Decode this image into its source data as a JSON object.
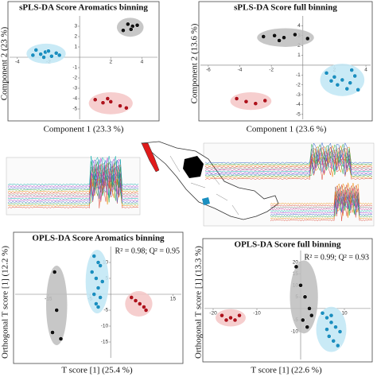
{
  "chart_data": [
    {
      "type": "scatter",
      "title": "sPLS-DA Score Aromatics binning",
      "x_label": "Component 1 (23.3 %)",
      "y_label": "Component 2 (23 %)",
      "xlim": [
        -4.5,
        5
      ],
      "ylim": [
        -6,
        4
      ],
      "xticks": [
        -4,
        -2,
        2,
        4
      ],
      "yticks": [
        -5,
        -4,
        -3,
        -2,
        -1,
        1,
        2,
        3
      ],
      "series": [
        {
          "color": "#111111",
          "ellipse_color": "#bdbdbd",
          "x": [
            2.8,
            3.1,
            3.4,
            3.7,
            3.3
          ],
          "y": [
            2.6,
            3.2,
            3.0,
            3.1,
            2.7
          ]
        },
        {
          "color": "#1a8fc0",
          "ellipse_color": "#bfe6f5",
          "x": [
            -3,
            -2.5,
            -2.2,
            -1.8,
            -1.5,
            -2,
            -2.8,
            -1.3,
            -2.3
          ],
          "y": [
            0.2,
            0.3,
            0.5,
            0.1,
            0.4,
            0.6,
            0.7,
            0.2,
            0
          ]
        },
        {
          "color": "#b0121c",
          "ellipse_color": "#f5c6c6",
          "x": [
            1.0,
            1.5,
            2.0,
            2.6,
            3.0,
            1.8
          ],
          "y": [
            -4.1,
            -4.4,
            -4.3,
            -4.7,
            -4.9,
            -4.0
          ]
        }
      ]
    },
    {
      "type": "scatter",
      "title": "sPLS-DA Score full binning",
      "x_label": "Component 1 (23.6 %)",
      "y_label": "Component 2 (13.6 %)",
      "xlim": [
        -6.5,
        4.3
      ],
      "ylim": [
        -5.5,
        5
      ],
      "xticks": [
        -6,
        -4,
        -2,
        2,
        4
      ],
      "yticks": [
        -5,
        -4,
        -3,
        -2,
        -1,
        1,
        2,
        3,
        4
      ],
      "series": [
        {
          "color": "#111111",
          "ellipse_color": "#bdbdbd",
          "x": [
            -2.5,
            -1.8,
            -1.2,
            -0.5,
            0.3,
            -1.5
          ],
          "y": [
            2.9,
            3.0,
            2.8,
            3.1,
            2.7,
            2.5
          ]
        },
        {
          "color": "#1a8fc0",
          "ellipse_color": "#bfe6f5",
          "x": [
            1.5,
            2,
            2.5,
            3,
            2.8,
            3.3,
            2.2,
            3.5,
            1.8,
            3.1
          ],
          "y": [
            -0.8,
            -1.2,
            -1.5,
            -1.8,
            -2.4,
            -1.1,
            -2.0,
            -2.5,
            -1.6,
            -0.5
          ]
        },
        {
          "color": "#b0121c",
          "ellipse_color": "#f5c6c6",
          "x": [
            -4.2,
            -3.6,
            -3.0,
            -2.4
          ],
          "y": [
            -3.4,
            -3.7,
            -3.9,
            -3.6
          ]
        }
      ]
    },
    {
      "type": "scatter",
      "title": "OPLS-DA Score Aromatics binning",
      "x_label": "T score [1] (25.4 %)",
      "y_label": "Orthogonal T score [1] (12.2 %)",
      "annotation": "R² = 0.98; Q² = 0.95",
      "xlim": [
        -23,
        17
      ],
      "ylim": [
        -20,
        15
      ],
      "xticks": [
        -15,
        -5,
        5,
        15
      ],
      "yticks": [
        -15,
        -10,
        -5,
        5,
        10
      ],
      "series": [
        {
          "color": "#111111",
          "ellipse_color": "#bdbdbd",
          "x": [
            -13.5,
            -13,
            -12,
            -14
          ],
          "y": [
            7,
            -5,
            -14,
            -12
          ]
        },
        {
          "color": "#1a8fc0",
          "ellipse_color": "#bfe6f5",
          "x": [
            -4,
            -3,
            -2.5,
            -4.5,
            -3.5,
            -2,
            -3,
            -4,
            -2.5,
            -3.5,
            -3
          ],
          "y": [
            12,
            10,
            9,
            7,
            5,
            4,
            2,
            0,
            -1,
            -3,
            -4
          ]
        },
        {
          "color": "#b0121c",
          "ellipse_color": "#f5c6c6",
          "x": [
            5,
            6,
            7,
            8,
            8.5
          ],
          "y": [
            -1,
            -2,
            -3,
            -4,
            -5
          ]
        }
      ]
    },
    {
      "type": "scatter",
      "title": "OPLS-DA Score full binning",
      "x_label": "T score [1] (22.6 %)",
      "y_label": "Orthogonal T score [1] (13.3 %)",
      "annotation": "R² = 0.99; Q² = 0.93",
      "xlim": [
        -22,
        16
      ],
      "ylim": [
        -22,
        25
      ],
      "xticks": [
        -20,
        -10,
        10
      ],
      "yticks": [
        -10,
        -5,
        5,
        10,
        15,
        20
      ],
      "series": [
        {
          "color": "#111111",
          "ellipse_color": "#bdbdbd",
          "x": [
            -1,
            0,
            1,
            2,
            0.5,
            1.5,
            2.5
          ],
          "y": [
            18,
            10,
            5,
            0,
            -5,
            -8,
            -3
          ]
        },
        {
          "color": "#b0121c",
          "ellipse_color": "#f5c6c6",
          "x": [
            -18,
            -17,
            -16,
            -15,
            -14
          ],
          "y": [
            -3,
            -5,
            -4,
            -5,
            -3
          ]
        },
        {
          "color": "#1a8fc0",
          "ellipse_color": "#bfe6f5",
          "x": [
            5,
            6,
            7,
            8,
            9,
            6.5,
            7.5,
            8.5,
            6,
            7
          ],
          "y": [
            -2,
            -4,
            -6,
            -8,
            -10,
            -12,
            -14,
            -16,
            -9,
            -3
          ]
        }
      ]
    }
  ]
}
